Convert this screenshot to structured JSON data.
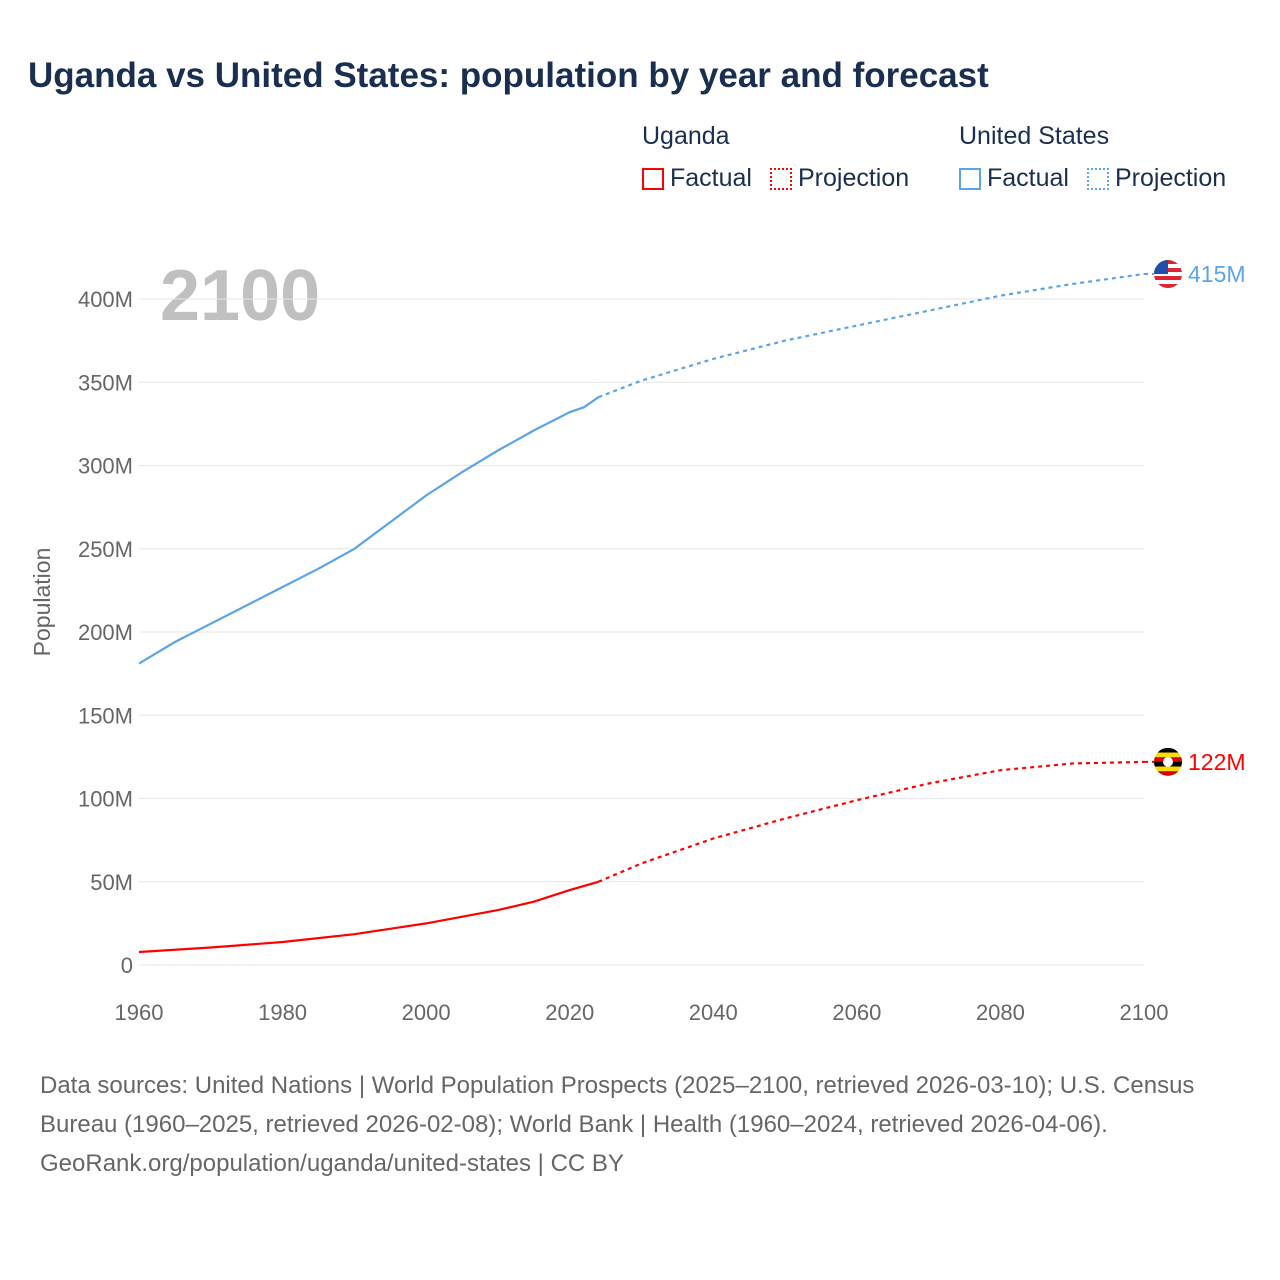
{
  "title": "Uganda vs United States: population by year and forecast",
  "legend": {
    "groups": [
      {
        "name": "Uganda",
        "factual": "Factual",
        "projection": "Projection",
        "color": "#ff0000"
      },
      {
        "name": "United States",
        "factual": "Factual",
        "projection": "Projection",
        "color": "#5ba4e8"
      }
    ]
  },
  "year_label": "2100",
  "chart_data": {
    "type": "line",
    "ylabel": "Population",
    "xlabel": "",
    "xlim": [
      1960,
      2100
    ],
    "ylim": [
      0,
      400
    ],
    "x_ticks": [
      "1960",
      "1980",
      "2000",
      "2020",
      "2040",
      "2060",
      "2080",
      "2100"
    ],
    "y_ticks": [
      "0",
      "50M",
      "100M",
      "150M",
      "200M",
      "250M",
      "300M",
      "350M",
      "400M"
    ],
    "grid": true,
    "factual_until": 2024,
    "series": [
      {
        "name": "United States",
        "color": "#5ba4e8",
        "end_label": "415M",
        "flag": "us-flag",
        "x": [
          1960,
          1965,
          1970,
          1975,
          1980,
          1985,
          1990,
          1995,
          2000,
          2005,
          2010,
          2015,
          2020,
          2022,
          2024,
          2030,
          2040,
          2050,
          2060,
          2070,
          2080,
          2090,
          2100
        ],
        "values": [
          181,
          194,
          205,
          216,
          227,
          238,
          250,
          266,
          282,
          296,
          309,
          321,
          332,
          335,
          341,
          351,
          364,
          375,
          384,
          393,
          402,
          409,
          415
        ]
      },
      {
        "name": "Uganda",
        "color": "#ff0000",
        "end_label": "122M",
        "flag": "uganda-flag",
        "x": [
          1960,
          1970,
          1980,
          1990,
          2000,
          2010,
          2015,
          2020,
          2024,
          2030,
          2040,
          2050,
          2060,
          2070,
          2080,
          2090,
          2100
        ],
        "values": [
          7.8,
          10.5,
          13.8,
          18.5,
          25,
          33,
          38,
          45,
          50,
          61,
          76,
          88,
          99,
          109,
          117,
          121,
          122
        ]
      }
    ]
  },
  "footer": {
    "sources": "Data sources: United Nations | World Population Prospects (2025–2100, retrieved 2026-03-10); U.S. Census Bureau (1960–2025, retrieved 2026-02-08); World Bank | Health (1960–2024, retrieved 2026-04-06).",
    "credit": "GeoRank.org/population/uganda/united-states | CC BY"
  }
}
